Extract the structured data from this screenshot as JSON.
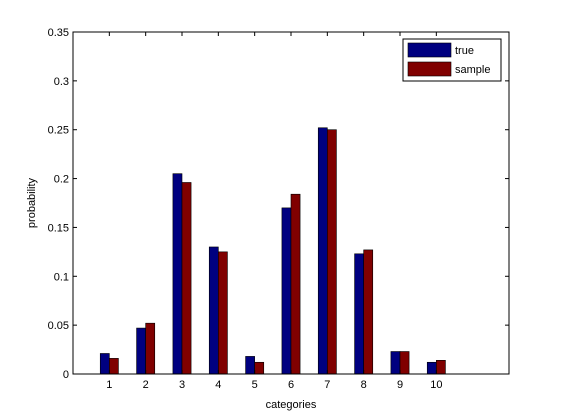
{
  "chart_data": {
    "type": "bar",
    "title": "",
    "xlabel": "categories",
    "ylabel": "probability",
    "categories": [
      "1",
      "2",
      "3",
      "4",
      "5",
      "6",
      "7",
      "8",
      "9",
      "10"
    ],
    "ylim": [
      0,
      0.35
    ],
    "yticks": [
      "0",
      "0.05",
      "0.1",
      "0.15",
      "0.2",
      "0.25",
      "0.3",
      "0.35"
    ],
    "xlim": [
      0,
      12
    ],
    "grid": false,
    "legend_position": "top-right",
    "series": [
      {
        "name": "true",
        "color": "#000080",
        "values": [
          0.021,
          0.047,
          0.205,
          0.13,
          0.018,
          0.17,
          0.252,
          0.123,
          0.023,
          0.012
        ]
      },
      {
        "name": "sample",
        "color": "#800000",
        "values": [
          0.016,
          0.052,
          0.196,
          0.125,
          0.012,
          0.184,
          0.25,
          0.127,
          0.023,
          0.014
        ]
      }
    ]
  }
}
